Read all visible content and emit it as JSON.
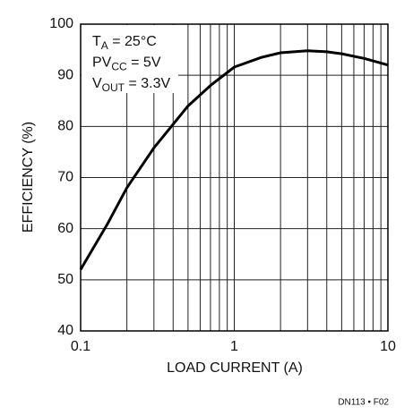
{
  "chart_data": {
    "type": "line",
    "x_label": "LOAD CURRENT (A)",
    "y_label": "EFFICIENCY (%)",
    "annotations": [
      {
        "main": "T",
        "sub": "A",
        "rest": " = 25°C"
      },
      {
        "main": "PV",
        "sub": "CC",
        "rest": " = 5V"
      },
      {
        "main": "V",
        "sub": "OUT",
        "rest": " = 3.3V"
      }
    ],
    "footnote": "DN113 • F02",
    "x": [
      0.1,
      0.15,
      0.2,
      0.3,
      0.5,
      0.7,
      1,
      1.5,
      2,
      3,
      4,
      5,
      7,
      10
    ],
    "series": [
      {
        "color": "#000000",
        "values": [
          52,
          61,
          68,
          75.8,
          84,
          88,
          91.6,
          93.5,
          94.4,
          94.8,
          94.6,
          94.2,
          93.3,
          92
        ]
      }
    ],
    "xscale": "log",
    "xlim": [
      0.1,
      10
    ],
    "xticks": [
      0.1,
      1,
      10
    ],
    "xgrid": [
      0.2,
      0.3,
      0.4,
      0.5,
      0.6,
      0.7,
      0.8,
      0.9,
      2,
      3,
      4,
      5,
      6,
      7,
      8,
      9
    ],
    "ylim": [
      40,
      100
    ],
    "yticks": [
      40,
      50,
      60,
      70,
      80,
      90,
      100
    ],
    "grid": true
  }
}
